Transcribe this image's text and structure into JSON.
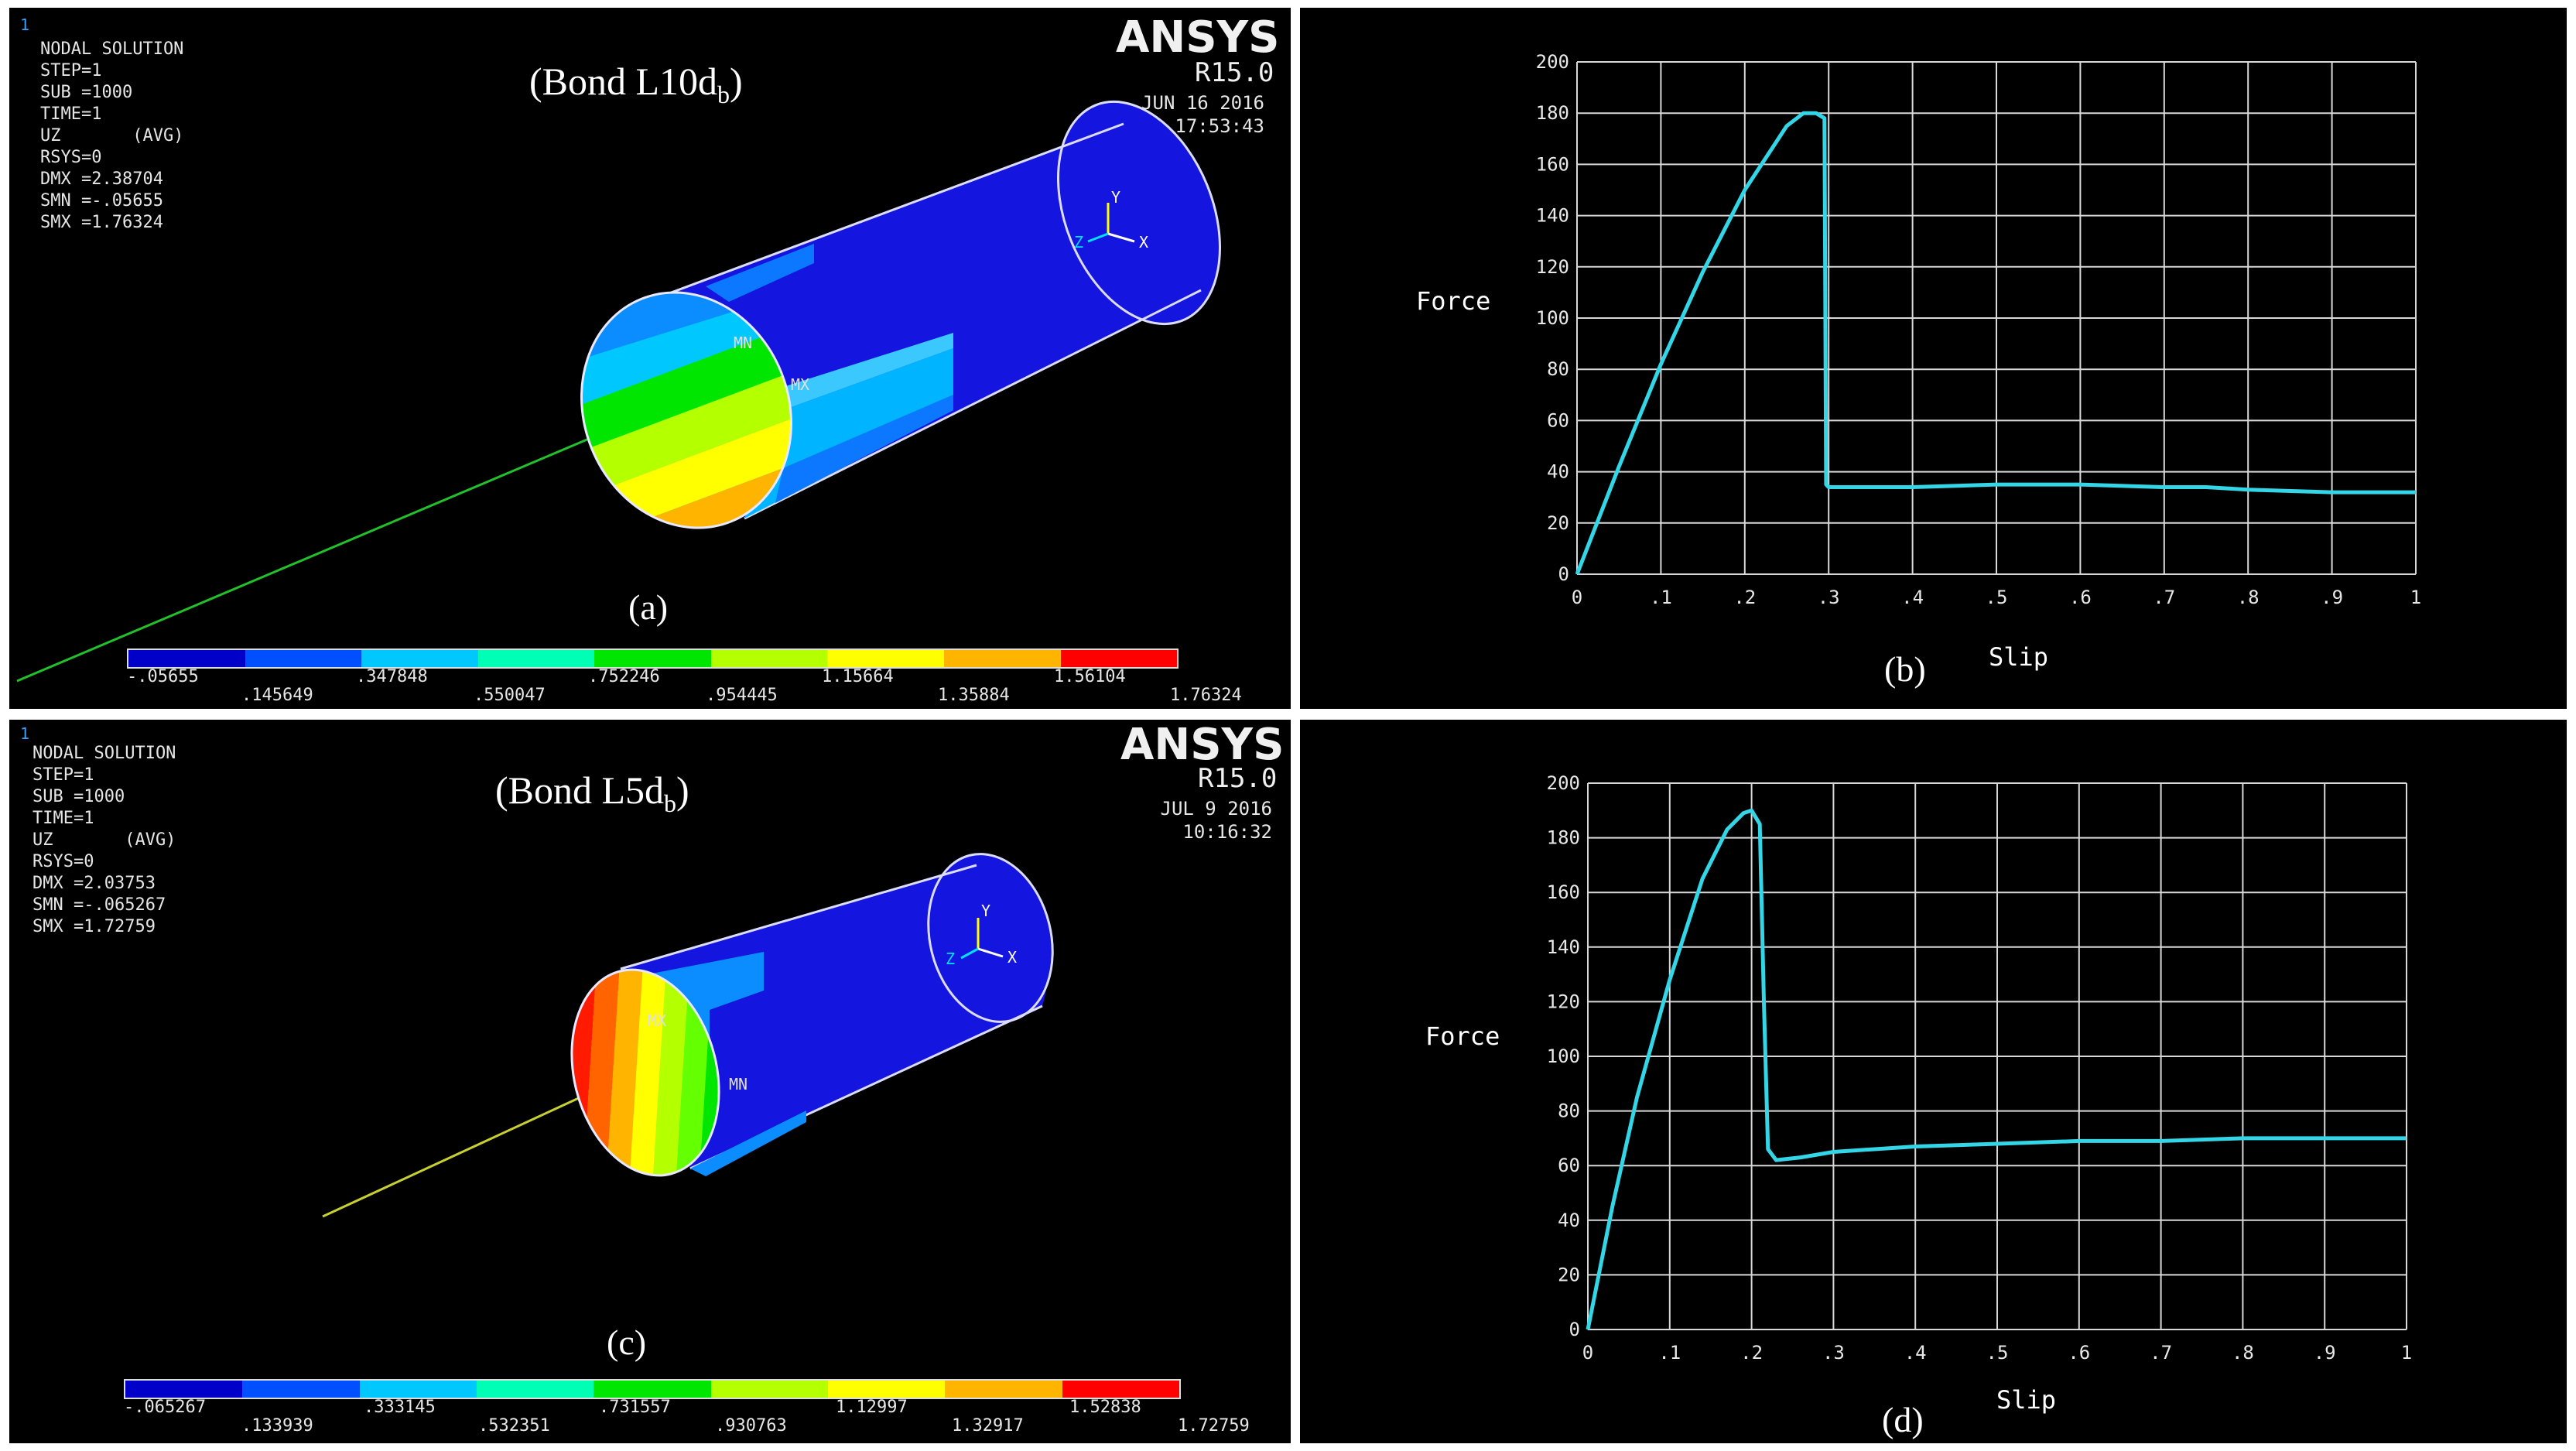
{
  "figures": [
    {
      "title_main": "(Bond L10d",
      "title_sub": "b",
      "title_close": ")",
      "window_no": "1",
      "info": [
        "NODAL SOLUTION",
        "STEP=1",
        "SUB =1000",
        "TIME=1",
        "UZ       (AVG)",
        "RSYS=0",
        "DMX =2.38704",
        "SMN =-.05655",
        "SMX =1.76324"
      ],
      "brand": "ANSYS",
      "version": "R15.0",
      "date": "JUN 16 2016",
      "time": "17:53:43",
      "caption": "(a)",
      "mn_label": "MN",
      "mx_label": "MX",
      "legend_top": [
        "-.05655",
        ".347848",
        ".752246",
        "1.15664",
        "1.56104"
      ],
      "legend_bottom": [
        ".145649",
        ".550047",
        ".954445",
        "1.35884",
        "1.76324"
      ]
    },
    {
      "title_main": "(Bond L5d",
      "title_sub": "b",
      "title_close": ")",
      "window_no": "1",
      "info": [
        "NODAL SOLUTION",
        "STEP=1",
        "SUB =1000",
        "TIME=1",
        "UZ       (AVG)",
        "RSYS=0",
        "DMX =2.03753",
        "SMN =-.065267",
        "SMX =1.72759"
      ],
      "brand": "ANSYS",
      "version": "R15.0",
      "date": "JUL  9 2016",
      "time": "10:16:32",
      "caption": "(c)",
      "mn_label": "MN",
      "mx_label": "MX",
      "legend_top": [
        "-.065267",
        ".333145",
        ".731557",
        "1.12997",
        "1.52838"
      ],
      "legend_bottom": [
        ".133939",
        ".532351",
        ".930763",
        "1.32917",
        "1.72759"
      ]
    }
  ],
  "legend_colors": [
    "#0000c8",
    "#0050ff",
    "#00c8ff",
    "#00ffb4",
    "#00e600",
    "#b4ff00",
    "#ffff00",
    "#ffb400",
    "#ff0000"
  ],
  "chart_data": [
    {
      "type": "line",
      "xlabel": "Slip",
      "ylabel": "Force",
      "caption": "(b)",
      "xlim": [
        0,
        1
      ],
      "ylim": [
        0,
        200
      ],
      "x_ticks": [
        "0",
        ".1",
        ".2",
        ".3",
        ".4",
        ".5",
        ".6",
        ".7",
        ".8",
        ".9",
        "1"
      ],
      "y_ticks": [
        "0",
        "20",
        "40",
        "60",
        "80",
        "100",
        "120",
        "140",
        "160",
        "180",
        "200"
      ],
      "grid": true,
      "line_color": "#33d6e6",
      "series": [
        {
          "x": [
            0,
            0.05,
            0.1,
            0.15,
            0.2,
            0.25,
            0.27,
            0.285,
            0.295,
            0.297,
            0.3,
            0.35,
            0.4,
            0.5,
            0.6,
            0.7,
            0.75,
            0.8,
            0.9,
            1.0
          ],
          "y": [
            0,
            42,
            82,
            118,
            150,
            175,
            180,
            180,
            178,
            35,
            34,
            34,
            34,
            35,
            35,
            34,
            34,
            33,
            32,
            32
          ]
        }
      ]
    },
    {
      "type": "line",
      "xlabel": "Slip",
      "ylabel": "Force",
      "caption": "(d)",
      "xlim": [
        0,
        1
      ],
      "ylim": [
        0,
        200
      ],
      "x_ticks": [
        "0",
        ".1",
        ".2",
        ".3",
        ".4",
        ".5",
        ".6",
        ".7",
        ".8",
        ".9",
        "1"
      ],
      "y_ticks": [
        "0",
        "20",
        "40",
        "60",
        "80",
        "100",
        "120",
        "140",
        "160",
        "180",
        "200"
      ],
      "grid": true,
      "line_color": "#33d6e6",
      "series": [
        {
          "x": [
            0,
            0.03,
            0.06,
            0.1,
            0.14,
            0.17,
            0.19,
            0.2,
            0.21,
            0.215,
            0.22,
            0.23,
            0.26,
            0.3,
            0.4,
            0.5,
            0.6,
            0.7,
            0.8,
            0.9,
            1.0
          ],
          "y": [
            0,
            45,
            85,
            128,
            165,
            183,
            189,
            190,
            185,
            120,
            66,
            62,
            63,
            65,
            67,
            68,
            69,
            69,
            70,
            70,
            70
          ]
        }
      ]
    }
  ]
}
